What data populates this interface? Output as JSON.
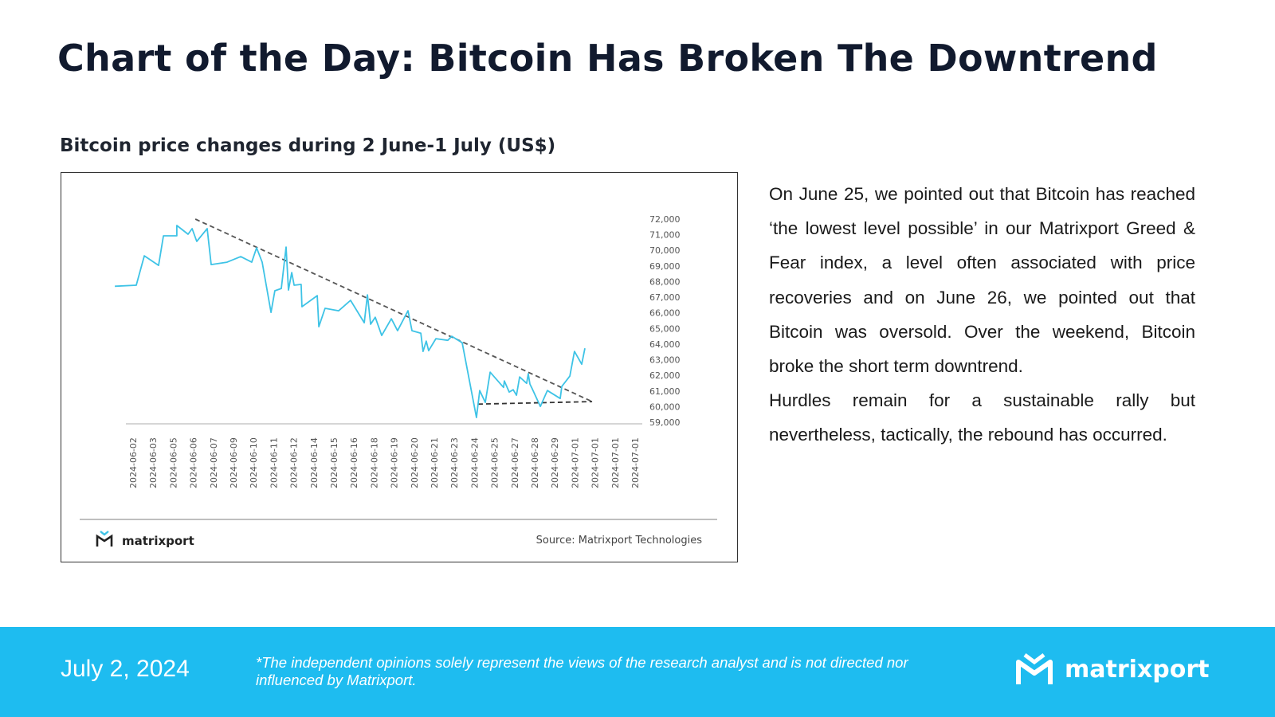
{
  "header": {
    "title": "Chart of the Day: Bitcoin Has Broken The Downtrend"
  },
  "chart_data": {
    "type": "line",
    "title": "Bitcoin price changes during 2 June-1 July (US$)",
    "categories": [
      "2024-06-02",
      "2024-06-03",
      "2024-06-05",
      "2024-06-06",
      "2024-06-07",
      "2024-06-09",
      "2024-06-10",
      "2024-06-11",
      "2024-06-12",
      "2024-06-14",
      "2024-06-15",
      "2024-06-16",
      "2024-06-18",
      "2024-06-19",
      "2024-06-20",
      "2024-06-21",
      "2024-06-23",
      "2024-06-24",
      "2024-06-25",
      "2024-06-27",
      "2024-06-28",
      "2024-06-29",
      "2024-07-01",
      "2024-07-01",
      "2024-07-01",
      "2024-07-01"
    ],
    "y_ticks": [
      "72,000",
      "71,000",
      "70,000",
      "69,000",
      "68,000",
      "67,000",
      "66,000",
      "65,000",
      "64,000",
      "63,000",
      "62,000",
      "61,000",
      "60,000",
      "59,000"
    ],
    "ylim": [
      59000,
      72000
    ],
    "y_axis_side": "right",
    "grid": false,
    "series": [
      {
        "color": "#3ec3e6",
        "points": [
          [
            -0.91,
            67700
          ],
          [
            0.16,
            67770
          ],
          [
            0.56,
            69650
          ],
          [
            1.27,
            69040
          ],
          [
            1.51,
            70930
          ],
          [
            2.18,
            70930
          ],
          [
            2.18,
            71590
          ],
          [
            2.74,
            71030
          ],
          [
            2.94,
            71390
          ],
          [
            3.17,
            70570
          ],
          [
            3.69,
            71390
          ],
          [
            3.89,
            69090
          ],
          [
            4.68,
            69240
          ],
          [
            5.36,
            69600
          ],
          [
            5.91,
            69240
          ],
          [
            6.15,
            70160
          ],
          [
            6.43,
            69240
          ],
          [
            6.87,
            66030
          ],
          [
            7.06,
            67410
          ],
          [
            7.38,
            67560
          ],
          [
            7.62,
            70210
          ],
          [
            7.74,
            67460
          ],
          [
            7.9,
            68580
          ],
          [
            8.02,
            67770
          ],
          [
            8.37,
            67820
          ],
          [
            8.41,
            66390
          ],
          [
            9.17,
            67100
          ],
          [
            9.25,
            65110
          ],
          [
            9.56,
            66290
          ],
          [
            10.24,
            66130
          ],
          [
            10.83,
            66800
          ],
          [
            11.51,
            65370
          ],
          [
            11.67,
            67150
          ],
          [
            11.83,
            65270
          ],
          [
            12.06,
            65720
          ],
          [
            12.38,
            64550
          ],
          [
            12.86,
            65620
          ],
          [
            13.17,
            64860
          ],
          [
            13.69,
            66130
          ],
          [
            13.89,
            64860
          ],
          [
            14.33,
            64700
          ],
          [
            14.44,
            63530
          ],
          [
            14.6,
            64190
          ],
          [
            14.72,
            63580
          ],
          [
            15.08,
            64350
          ],
          [
            15.67,
            64240
          ],
          [
            15.87,
            64500
          ],
          [
            16.39,
            64090
          ],
          [
            17.1,
            59300
          ],
          [
            17.26,
            61030
          ],
          [
            17.54,
            60270
          ],
          [
            17.78,
            62200
          ],
          [
            18.45,
            61230
          ],
          [
            18.49,
            61640
          ],
          [
            18.73,
            60930
          ],
          [
            18.93,
            61080
          ],
          [
            19.09,
            60730
          ],
          [
            19.25,
            61900
          ],
          [
            19.6,
            61490
          ],
          [
            19.68,
            62100
          ],
          [
            19.76,
            61440
          ],
          [
            19.88,
            61130
          ],
          [
            20.28,
            60010
          ],
          [
            20.63,
            61030
          ],
          [
            21.27,
            60520
          ],
          [
            21.35,
            61290
          ],
          [
            21.75,
            61950
          ],
          [
            21.98,
            63530
          ],
          [
            22.34,
            62710
          ],
          [
            22.5,
            63730
          ]
        ]
      }
    ],
    "trendlines": [
      {
        "style": "dashed",
        "color": "#555555",
        "points": [
          [
            3.1,
            72000
          ],
          [
            22.86,
            60320
          ]
        ]
      },
      {
        "style": "dashed",
        "color": "#333333",
        "points": [
          [
            17.18,
            60160
          ],
          [
            22.86,
            60320
          ]
        ]
      }
    ],
    "source": "Source: Matrixport Technologies",
    "logo_text": "matrixport"
  },
  "commentary": {
    "paragraphs": [
      "On June 25, we pointed out that Bitcoin has reached ‘the lowest level possible’ in our Matrixport Greed & Fear index, a level often associated with price recoveries and on June 26, we pointed out that Bitcoin was oversold. Over the weekend, Bitcoin broke the short term downtrend.",
      "Hurdles remain for a sustainable rally but nevertheless, tactically, the rebound has occurred."
    ]
  },
  "footer": {
    "date": "July 2, 2024",
    "disclaimer": "*The independent opinions solely represent the views of the research analyst and is not directed nor influenced by Matrixport.",
    "logo_text": "matrixport",
    "background": "#1ebcf0"
  }
}
